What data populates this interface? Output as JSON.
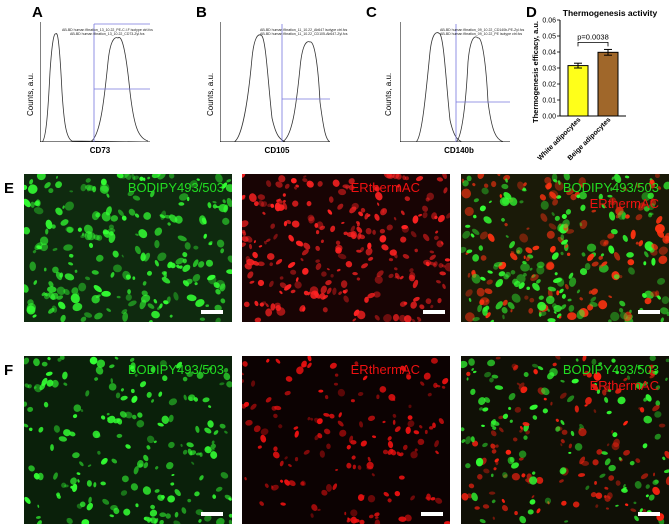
{
  "panels": {
    "a": {
      "label": "A",
      "xlabel": "CD73",
      "ylabel": "Counts, a.u.",
      "legend": [
        "AB-BD human fibration_13_10.22_PE-C.I.F isotype ctrl.fcs",
        "AB-BD human fibration_13_10.22_CD73-Zyl.fcs"
      ]
    },
    "b": {
      "label": "B",
      "xlabel": "CD105",
      "ylabel": "Counts, a.u.",
      "legend": [
        "AB-BD human fibration_11_10.22_Ab647 isotype ctrl.fcs",
        "AB-BD human fibration_11_10.22_CD105-Ab647-Zyl.fcs"
      ]
    },
    "c": {
      "label": "C",
      "xlabel": "CD140b",
      "ylabel": "Counts, a.u.",
      "legend": [
        "AB-BD human fibration_09_10.22_CD140b-PE-Zyl.fcs",
        "AB-BD human fibration_09_10.22_PE isotype ctrl.fcs"
      ]
    },
    "d": {
      "label": "D"
    },
    "e": {
      "label": "E",
      "stain_green": "BODIPY493/503",
      "stain_red": "ERthermAC"
    },
    "f": {
      "label": "F",
      "stain_green": "BODIPY493/503",
      "stain_red": "ERthermAC"
    }
  },
  "chart_data": {
    "type": "bar",
    "title": "Thermogenesis activity",
    "ylabel": "Thermogenesis efficacy, a.u.",
    "categories": [
      "White adipocytes",
      "Beige adipocytes"
    ],
    "values": [
      0.0315,
      0.0398
    ],
    "errors": [
      0.0015,
      0.0018
    ],
    "ylim": [
      0,
      0.06
    ],
    "yticks": [
      "0.00",
      "0.01",
      "0.02",
      "0.03",
      "0.04",
      "0.05",
      "0.06"
    ],
    "pvalue": "p=0.0038",
    "colors": [
      "#ffff1a",
      "#a0672a"
    ]
  },
  "colors": {
    "green": "#22dd22",
    "red": "#ee1111",
    "gate": "#7777dd"
  }
}
